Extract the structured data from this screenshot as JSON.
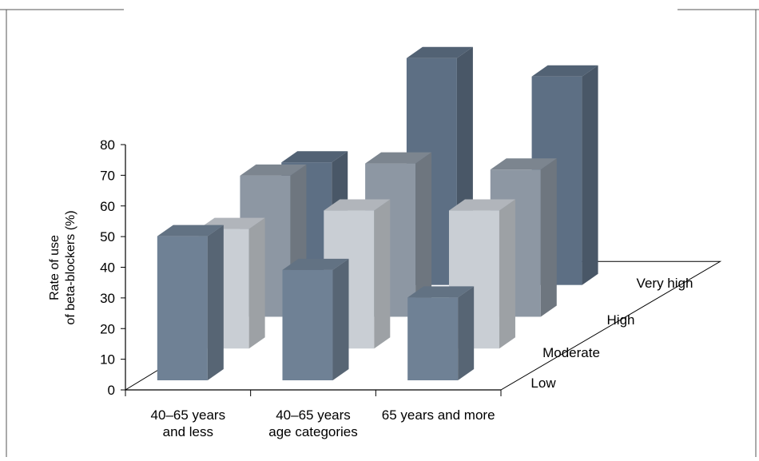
{
  "chart_data": {
    "type": "bar",
    "variant": "3d-grouped",
    "ylabel_lines": [
      "Rate of use",
      "of beta-blockers (%)"
    ],
    "ylim": [
      0,
      80
    ],
    "yticks": [
      0,
      10,
      20,
      30,
      40,
      50,
      60,
      70,
      80
    ],
    "categories": [
      {
        "lines": [
          "40–65 years",
          "and less"
        ]
      },
      {
        "lines": [
          "40–65 years",
          "age categories"
        ]
      },
      {
        "lines": [
          "65 years and more"
        ]
      }
    ],
    "series": [
      {
        "name": "Low",
        "values": [
          47,
          36,
          27
        ],
        "color": "#6f8195"
      },
      {
        "name": "Moderate",
        "values": [
          39,
          45,
          45
        ],
        "color": "#c9ced4"
      },
      {
        "name": "High",
        "values": [
          46,
          50,
          48
        ],
        "color": "#8d97a3"
      },
      {
        "name": "Very high",
        "values": [
          40,
          74,
          68
        ],
        "color": "#5d6f84"
      }
    ],
    "grid": false
  }
}
